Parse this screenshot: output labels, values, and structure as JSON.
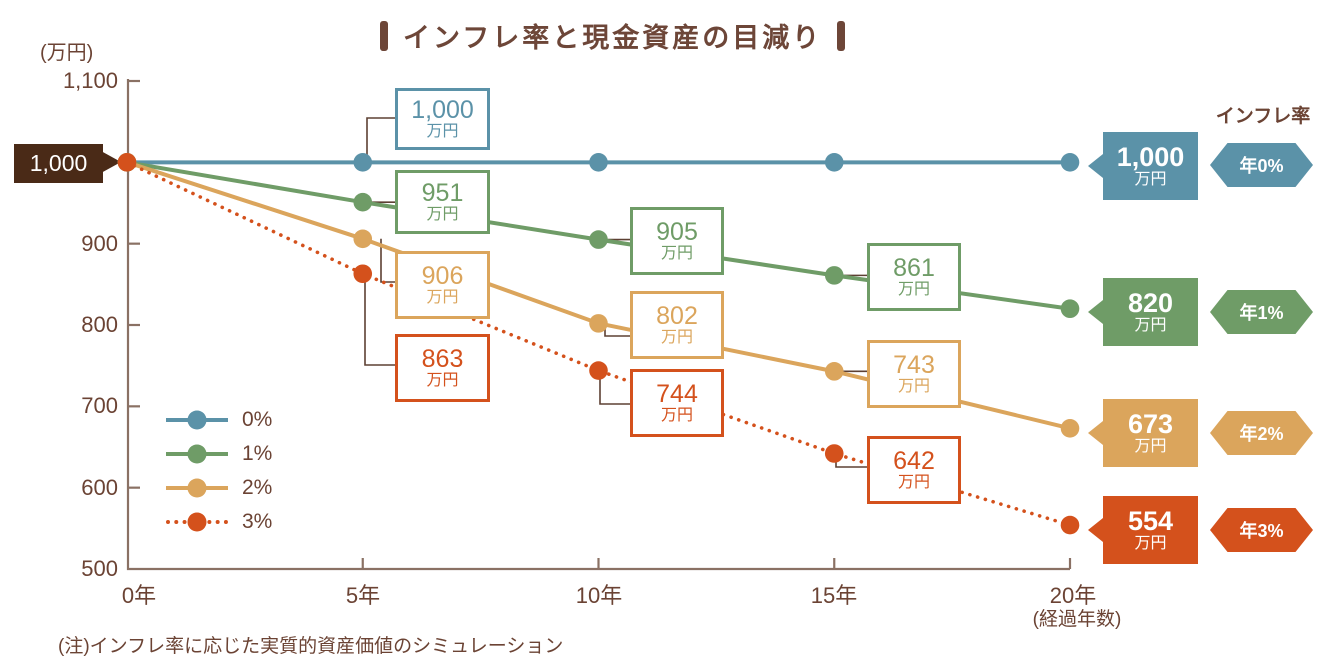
{
  "title": {
    "text": "インフレ率と現金資産の目減り"
  },
  "y_axis": {
    "unit": "(万円)",
    "ticks": [
      "1,100",
      "900",
      "800",
      "700",
      "600",
      "500"
    ],
    "start_box": "1,000"
  },
  "x_axis": {
    "ticks": [
      "0年",
      "5年",
      "10年",
      "15年",
      "20年"
    ],
    "note": "(経過年数)"
  },
  "legend": {
    "items": [
      {
        "label": "0%"
      },
      {
        "label": "1%"
      },
      {
        "label": "2%"
      },
      {
        "label": "3%"
      }
    ]
  },
  "callouts": [
    {
      "series": "0%",
      "year": 5,
      "value": "1,000",
      "unit": "万円"
    },
    {
      "series": "1%",
      "year": 5,
      "value": "951",
      "unit": "万円"
    },
    {
      "series": "2%",
      "year": 5,
      "value": "906",
      "unit": "万円"
    },
    {
      "series": "3%",
      "year": 5,
      "value": "863",
      "unit": "万円"
    },
    {
      "series": "1%",
      "year": 10,
      "value": "905",
      "unit": "万円"
    },
    {
      "series": "2%",
      "year": 10,
      "value": "802",
      "unit": "万円"
    },
    {
      "series": "3%",
      "year": 10,
      "value": "744",
      "unit": "万円"
    },
    {
      "series": "1%",
      "year": 15,
      "value": "861",
      "unit": "万円"
    },
    {
      "series": "2%",
      "year": 15,
      "value": "743",
      "unit": "万円"
    },
    {
      "series": "3%",
      "year": 15,
      "value": "642",
      "unit": "万円"
    }
  ],
  "right_labels": {
    "heading": "インフレ率",
    "items": [
      {
        "value": "1,000",
        "unit": "万円",
        "badge": "年0%"
      },
      {
        "value": "820",
        "unit": "万円",
        "badge": "年1%"
      },
      {
        "value": "673",
        "unit": "万円",
        "badge": "年2%"
      },
      {
        "value": "554",
        "unit": "万円",
        "badge": "年3%"
      }
    ]
  },
  "note": "(注)インフレ率に応じた実質的資産価値のシミュレーション",
  "colors": {
    "series_blue": "#5b92a8",
    "series_green": "#6f9c67",
    "series_tan": "#dba55c",
    "series_red": "#d4511c",
    "axis_brown": "#8a7164",
    "text_brown": "#6b4334",
    "connector_brown": "#5d4033",
    "dark_box_brown": "#4a2a17",
    "title_brown": "#6d4638"
  },
  "chart_data": {
    "type": "line",
    "title": "インフレ率と現金資産の目減り",
    "xlabel": "経過年数",
    "ylabel": "万円",
    "x_years": [
      0,
      5,
      10,
      15,
      20
    ],
    "ylim": [
      500,
      1100
    ],
    "y_tick_step": 100,
    "grid": false,
    "legend_position": "lower-left",
    "series": [
      {
        "name": "0%",
        "color": "#5b92a8",
        "style": "solid",
        "values": [
          1000,
          1000,
          1000,
          1000,
          1000
        ]
      },
      {
        "name": "1%",
        "color": "#6f9c67",
        "style": "solid",
        "values": [
          1000,
          951,
          905,
          861,
          820
        ]
      },
      {
        "name": "2%",
        "color": "#dba55c",
        "style": "solid",
        "values": [
          1000,
          906,
          802,
          743,
          673
        ]
      },
      {
        "name": "3%",
        "color": "#d4511c",
        "style": "dotted",
        "values": [
          1000,
          863,
          744,
          642,
          554
        ]
      }
    ]
  }
}
